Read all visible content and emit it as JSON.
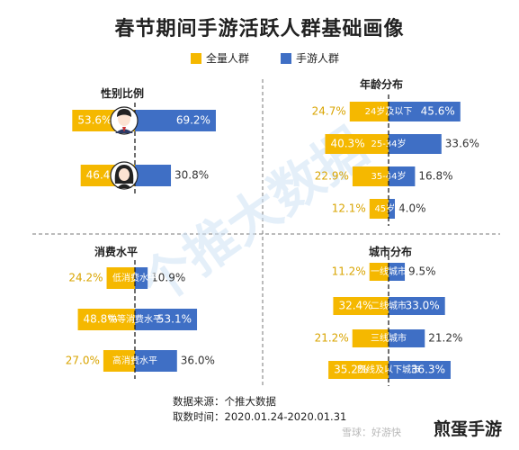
{
  "title": "春节期间手游活跃人群基础画像",
  "legend": [
    {
      "label": "全量人群",
      "color": "#F5B800"
    },
    {
      "label": "手游人群",
      "color": "#3F6FC5"
    }
  ],
  "footer": {
    "source": "数据来源：个推大数据",
    "period": "取数时间：2020.01.24-2020.01.31"
  },
  "watermark": {
    "brand": "煎蛋手游",
    "small": "雪球：好游快",
    "diagonal": "个推大数据"
  },
  "chart_data": [
    {
      "type": "bar",
      "title": "性别比例",
      "categories": [
        "男",
        "女"
      ],
      "series": [
        {
          "name": "全量人群",
          "values": [
            53.6,
            46.4
          ],
          "labels": [
            "53.6%",
            "46.4%"
          ]
        },
        {
          "name": "手游人群",
          "values": [
            69.2,
            30.8
          ],
          "labels": [
            "69.2%",
            "30.8%"
          ]
        }
      ]
    },
    {
      "type": "bar",
      "title": "年龄分布",
      "categories": [
        "24岁及以下",
        "25-34岁",
        "35-44岁",
        "45岁+"
      ],
      "series": [
        {
          "name": "全量人群",
          "values": [
            24.7,
            40.3,
            22.9,
            12.1
          ],
          "labels": [
            "24.7%",
            "40.3%",
            "22.9%",
            "12.1%"
          ]
        },
        {
          "name": "手游人群",
          "values": [
            45.6,
            33.6,
            16.8,
            4.0
          ],
          "labels": [
            "45.6%",
            "33.6%",
            "16.8%",
            "4.0%"
          ]
        }
      ]
    },
    {
      "type": "bar",
      "title": "消费水平",
      "categories": [
        "低消费水平",
        "中等消费水平",
        "高消费水平"
      ],
      "series": [
        {
          "name": "全量人群",
          "values": [
            24.2,
            48.8,
            27.0
          ],
          "labels": [
            "24.2%",
            "48.8%",
            "27.0%"
          ]
        },
        {
          "name": "手游人群",
          "values": [
            10.9,
            53.1,
            36.0
          ],
          "labels": [
            "10.9%",
            "53.1%",
            "36.0%"
          ]
        }
      ]
    },
    {
      "type": "bar",
      "title": "城市分布",
      "categories": [
        "一线城市",
        "二线城市",
        "三线城市",
        "四线及以下城市"
      ],
      "series": [
        {
          "name": "全量人群",
          "values": [
            11.2,
            32.4,
            21.2,
            35.2
          ],
          "labels": [
            "11.2%",
            "32.4%",
            "21.2%",
            "35.2%"
          ]
        },
        {
          "name": "手游人群",
          "values": [
            9.5,
            33.0,
            21.2,
            36.3
          ],
          "labels": [
            "9.5%",
            "33.0%",
            "21.2%",
            "36.3%"
          ]
        }
      ]
    }
  ]
}
